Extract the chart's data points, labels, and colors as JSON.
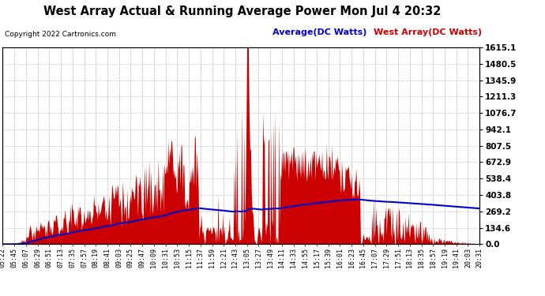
{
  "title": "West Array Actual & Running Average Power Mon Jul 4 20:32",
  "copyright": "Copyright 2022 Cartronics.com",
  "legend_avg": "Average(DC Watts)",
  "legend_west": "West Array(DC Watts)",
  "yticks": [
    0.0,
    134.6,
    269.2,
    403.8,
    538.4,
    672.9,
    807.5,
    942.1,
    1076.7,
    1211.3,
    1345.9,
    1480.5,
    1615.1
  ],
  "ymax": 1615.1,
  "ymin": 0.0,
  "bg_color": "#ffffff",
  "grid_color": "#c8c8c8",
  "fill_color": "#cc0000",
  "avg_line_color": "#0000cc",
  "title_color": "#000000",
  "xtick_labels": [
    "05:22",
    "05:45",
    "06:07",
    "06:29",
    "06:51",
    "07:13",
    "07:35",
    "07:57",
    "08:19",
    "08:41",
    "09:03",
    "09:25",
    "09:47",
    "10:09",
    "10:31",
    "10:53",
    "11:15",
    "11:37",
    "11:59",
    "12:21",
    "12:43",
    "13:05",
    "13:27",
    "13:49",
    "14:11",
    "14:33",
    "14:55",
    "15:17",
    "15:39",
    "16:01",
    "16:23",
    "16:45",
    "17:07",
    "17:29",
    "17:51",
    "18:13",
    "18:35",
    "18:57",
    "19:19",
    "19:41",
    "20:03",
    "20:31"
  ]
}
